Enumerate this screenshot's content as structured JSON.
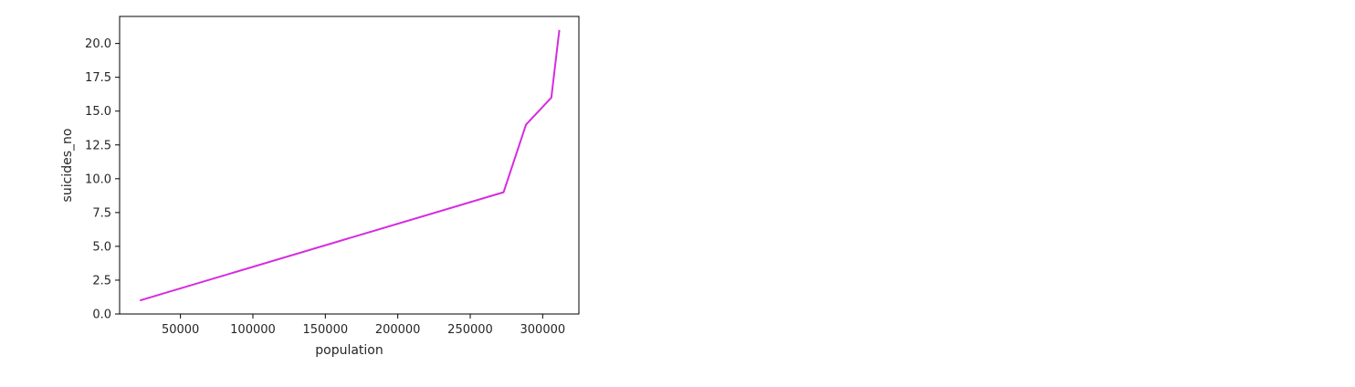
{
  "chart_data": {
    "type": "line",
    "title": "",
    "xlabel": "population",
    "ylabel": "suicides_no",
    "xlim": [
      8000,
      325000
    ],
    "ylim": [
      0,
      22
    ],
    "xticks": [
      50000,
      100000,
      150000,
      200000,
      250000,
      300000
    ],
    "yticks": [
      0.0,
      2.5,
      5.0,
      7.5,
      10.0,
      12.5,
      15.0,
      17.5,
      20.0
    ],
    "grid": false,
    "series": [
      {
        "color": "#d62be0",
        "x": [
          22000,
          273000,
          288500,
          306000,
          311500
        ],
        "y": [
          1,
          9,
          14,
          16,
          21
        ]
      }
    ]
  }
}
